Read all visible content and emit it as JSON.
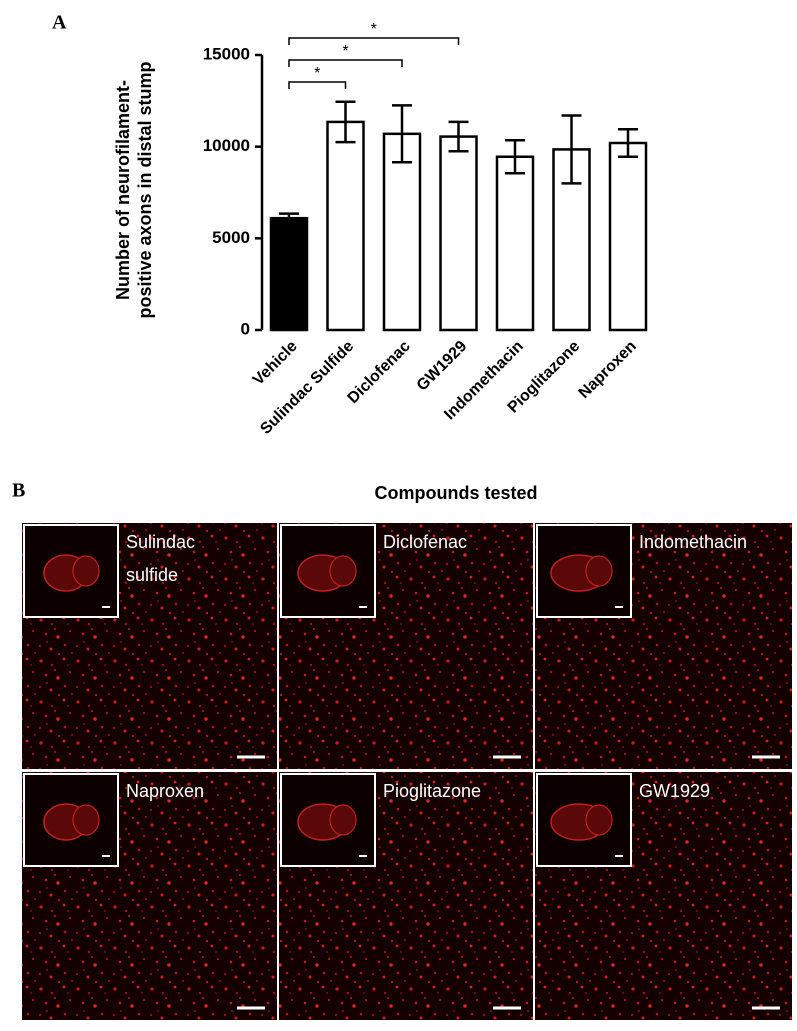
{
  "panel_a_label": "A",
  "chart_data": {
    "type": "bar",
    "ylabel": [
      "Number of neurofilament-",
      "positive axons in distal stump"
    ],
    "categories": [
      "Vehicle",
      "Sulindac Sulfide",
      "Diclofenac",
      "GW1929",
      "Indomethacin",
      "Pioglitazone",
      "Naproxen"
    ],
    "values": [
      6100,
      11350,
      10700,
      10550,
      9450,
      9850,
      10200
    ],
    "errors": [
      250,
      1100,
      1550,
      800,
      900,
      1850,
      750
    ],
    "colors": [
      "#000000",
      "#ffffff",
      "#ffffff",
      "#ffffff",
      "#ffffff",
      "#ffffff",
      "#ffffff"
    ],
    "ylim": [
      0,
      15000
    ],
    "yticks": [
      0,
      5000,
      10000,
      15000
    ],
    "grid": false,
    "annotations": [
      {
        "text": "*",
        "from": "Vehicle",
        "to": "Sulindac Sulfide"
      },
      {
        "text": "*",
        "from": "Vehicle",
        "to": "Diclofenac"
      },
      {
        "text": "*",
        "from": "Vehicle",
        "to": "GW1929"
      }
    ]
  },
  "panel_b": {
    "label": "B",
    "title": "Compounds tested",
    "images": [
      {
        "label": [
          "Sulindac",
          "sulfide"
        ]
      },
      {
        "label": [
          "Diclofenac"
        ]
      },
      {
        "label": [
          "Indomethacin"
        ]
      },
      {
        "label": [
          "Naproxen"
        ]
      },
      {
        "label": [
          "Pioglitazone"
        ]
      },
      {
        "label": [
          "GW1929"
        ]
      }
    ]
  }
}
